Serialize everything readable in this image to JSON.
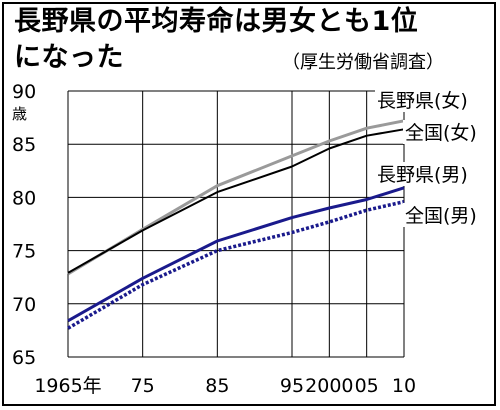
{
  "header": {
    "title_line1": "長野県の平均寿命は男女とも1位",
    "title_line2": "になった",
    "source": "（厚生労働省調査）"
  },
  "chart_data": {
    "type": "line",
    "title": "長野県の平均寿命は男女とも1位になった",
    "source": "（厚生労働省調査）",
    "y_unit": "歳",
    "x": [
      1965,
      1975,
      1985,
      1995,
      2000,
      2005,
      2010
    ],
    "x_tick_labels": [
      "1965年",
      "75",
      "85",
      "95",
      "2000",
      "05",
      "10"
    ],
    "ylim": [
      65,
      90
    ],
    "y_ticks": [
      65,
      70,
      75,
      80,
      85,
      90
    ],
    "grid": true,
    "series": [
      {
        "name": "長野県(女)",
        "color": "#9a9a9a",
        "style": "solid-thick",
        "values": [
          72.8,
          77.0,
          81.1,
          83.9,
          85.3,
          86.5,
          87.2
        ]
      },
      {
        "name": "全国(女)",
        "color": "#000000",
        "style": "solid",
        "values": [
          72.9,
          76.9,
          80.5,
          82.9,
          84.6,
          85.8,
          86.4
        ]
      },
      {
        "name": "長野県(男)",
        "color": "#1a1a8c",
        "style": "solid-thick",
        "values": [
          68.4,
          72.4,
          75.9,
          78.1,
          79.0,
          79.8,
          80.9
        ]
      },
      {
        "name": "全国(男)",
        "color": "#1a1a8c",
        "style": "dotted",
        "values": [
          67.7,
          71.8,
          75.0,
          76.7,
          77.7,
          78.8,
          79.6
        ]
      }
    ]
  }
}
